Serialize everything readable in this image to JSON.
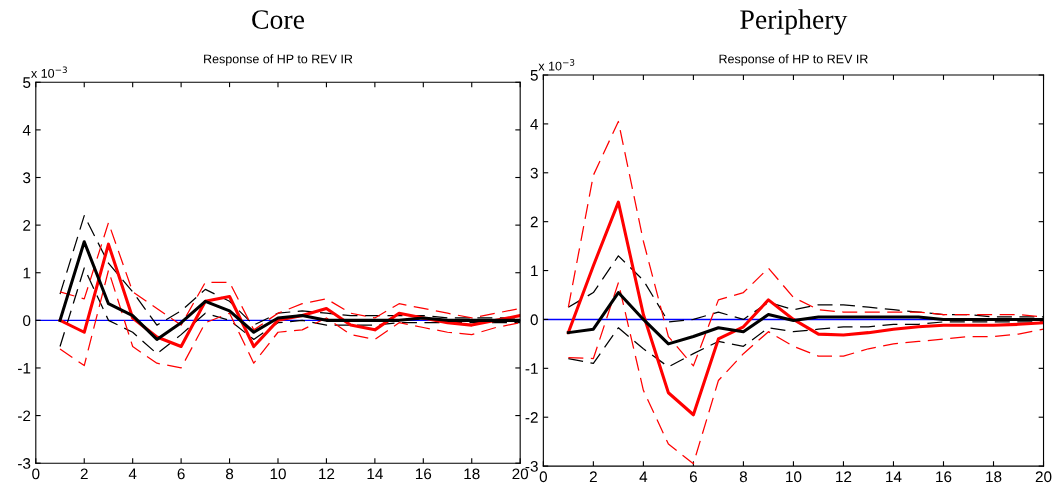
{
  "chart_data": [
    {
      "type": "line",
      "title": "Core",
      "subtitle": "Response of HP to REV IR",
      "annotations": [
        "x 10$^{−3}$"
      ],
      "x": [
        1,
        2,
        3,
        4,
        5,
        6,
        7,
        8,
        9,
        10,
        11,
        12,
        13,
        14,
        15,
        16,
        17,
        18,
        19,
        20
      ],
      "xlim": [
        0,
        20
      ],
      "xticks": [
        0,
        2,
        4,
        6,
        8,
        10,
        12,
        14,
        16,
        18,
        20
      ],
      "ylim": [
        -3,
        5
      ],
      "yticks": [
        -3,
        -2,
        -1,
        0,
        1,
        2,
        3,
        4,
        5
      ],
      "grid": false,
      "marker": "none",
      "ref_lines": [
        {
          "axis": "y",
          "value": 0,
          "color": "#0000ff"
        }
      ],
      "series": [
        {
          "color": "#000000",
          "line_style": "dashed",
          "values": [
            0.55,
            2.2,
            1.2,
            0.6,
            -0.1,
            0.2,
            0.65,
            0.4,
            -0.1,
            0.15,
            0.2,
            0.15,
            0.1,
            0.1,
            0.1,
            0.1,
            0.05,
            0.05,
            0.05,
            0.05
          ]
        },
        {
          "color": "#000000",
          "line_style": "dashed",
          "values": [
            -0.55,
            1.1,
            0.0,
            -0.25,
            -0.7,
            -0.3,
            0.15,
            0.0,
            -0.4,
            -0.05,
            0.0,
            -0.1,
            -0.1,
            -0.1,
            -0.05,
            -0.05,
            -0.05,
            -0.05,
            -0.05,
            -0.05
          ]
        },
        {
          "color": "#ff0000",
          "line_style": "dashed",
          "values": [
            0.6,
            0.45,
            2.05,
            0.6,
            0.25,
            -0.1,
            0.8,
            0.8,
            -0.2,
            0.15,
            0.35,
            0.45,
            0.15,
            0.05,
            0.35,
            0.25,
            0.15,
            0.05,
            0.15,
            0.25
          ]
        },
        {
          "color": "#ff0000",
          "line_style": "dashed",
          "values": [
            -0.6,
            -0.95,
            1.05,
            -0.55,
            -0.9,
            -1.0,
            -0.05,
            0.15,
            -0.9,
            -0.25,
            -0.2,
            0.05,
            -0.3,
            -0.4,
            -0.05,
            -0.15,
            -0.25,
            -0.3,
            -0.15,
            -0.05
          ]
        },
        {
          "color": "#ff0000",
          "line_style": "solid",
          "values": [
            0,
            -0.25,
            1.6,
            0.05,
            -0.35,
            -0.55,
            0.4,
            0.5,
            -0.55,
            0.0,
            0.1,
            0.25,
            -0.1,
            -0.2,
            0.15,
            0.05,
            -0.05,
            -0.1,
            0.0,
            0.1
          ]
        },
        {
          "color": "#000000",
          "line_style": "solid",
          "values": [
            0,
            1.65,
            0.35,
            0.1,
            -0.4,
            -0.05,
            0.4,
            0.2,
            -0.25,
            0.05,
            0.1,
            0.0,
            0.0,
            0.0,
            0.0,
            0.05,
            0.0,
            0.0,
            0.0,
            0.0
          ]
        }
      ]
    },
    {
      "type": "line",
      "title": "Periphery",
      "subtitle": "Response of HP to REV IR",
      "annotations": [
        "x 10$^{−3}$"
      ],
      "x": [
        1,
        2,
        3,
        4,
        5,
        6,
        7,
        8,
        9,
        10,
        11,
        12,
        13,
        14,
        15,
        16,
        17,
        18,
        19,
        20
      ],
      "xlim": [
        0,
        20
      ],
      "xticks": [
        0,
        2,
        4,
        6,
        8,
        10,
        12,
        14,
        16,
        18,
        20
      ],
      "ylim": [
        -3,
        5
      ],
      "yticks": [
        -3,
        -2,
        -1,
        0,
        1,
        2,
        3,
        4,
        5
      ],
      "grid": false,
      "marker": "none",
      "ref_lines": [
        {
          "axis": "y",
          "value": 0,
          "color": "#0000ff"
        }
      ],
      "series": [
        {
          "color": "#000000",
          "line_style": "dashed",
          "values": [
            0.25,
            0.55,
            1.3,
            0.8,
            -0.05,
            0.0,
            0.15,
            0.0,
            0.35,
            0.2,
            0.3,
            0.3,
            0.25,
            0.2,
            0.15,
            0.1,
            0.1,
            0.05,
            0.05,
            0.05
          ]
        },
        {
          "color": "#000000",
          "line_style": "dashed",
          "values": [
            -0.8,
            -0.9,
            -0.17,
            -0.6,
            -0.97,
            -0.7,
            -0.45,
            -0.55,
            -0.17,
            -0.25,
            -0.2,
            -0.15,
            -0.15,
            -0.1,
            -0.1,
            -0.05,
            -0.05,
            -0.05,
            -0.05,
            -0.05
          ]
        },
        {
          "color": "#ff0000",
          "line_style": "dashed",
          "values": [
            0.25,
            2.95,
            4.05,
            1.6,
            -0.35,
            -0.95,
            0.4,
            0.55,
            1.05,
            0.45,
            0.2,
            0.15,
            0.15,
            0.15,
            0.15,
            0.1,
            0.1,
            0.1,
            0.1,
            0.05
          ]
        },
        {
          "color": "#ff0000",
          "line_style": "dashed",
          "values": [
            -0.78,
            -0.8,
            0.75,
            -1.45,
            -2.55,
            -2.95,
            -1.25,
            -0.7,
            -0.25,
            -0.55,
            -0.75,
            -0.75,
            -0.6,
            -0.5,
            -0.45,
            -0.4,
            -0.35,
            -0.35,
            -0.3,
            -0.2
          ]
        },
        {
          "color": "#ff0000",
          "line_style": "solid",
          "values": [
            -0.27,
            1.1,
            2.4,
            0.1,
            -1.5,
            -1.95,
            -0.4,
            -0.15,
            0.4,
            0.0,
            -0.3,
            -0.32,
            -0.27,
            -0.2,
            -0.15,
            -0.12,
            -0.12,
            -0.12,
            -0.1,
            -0.07
          ]
        },
        {
          "color": "#000000",
          "line_style": "solid",
          "values": [
            -0.27,
            -0.2,
            0.55,
            0.0,
            -0.5,
            -0.35,
            -0.17,
            -0.25,
            0.1,
            -0.02,
            0.05,
            0.05,
            0.05,
            0.05,
            0.05,
            0.0,
            0.0,
            0.0,
            0.0,
            0.0
          ]
        }
      ]
    }
  ]
}
